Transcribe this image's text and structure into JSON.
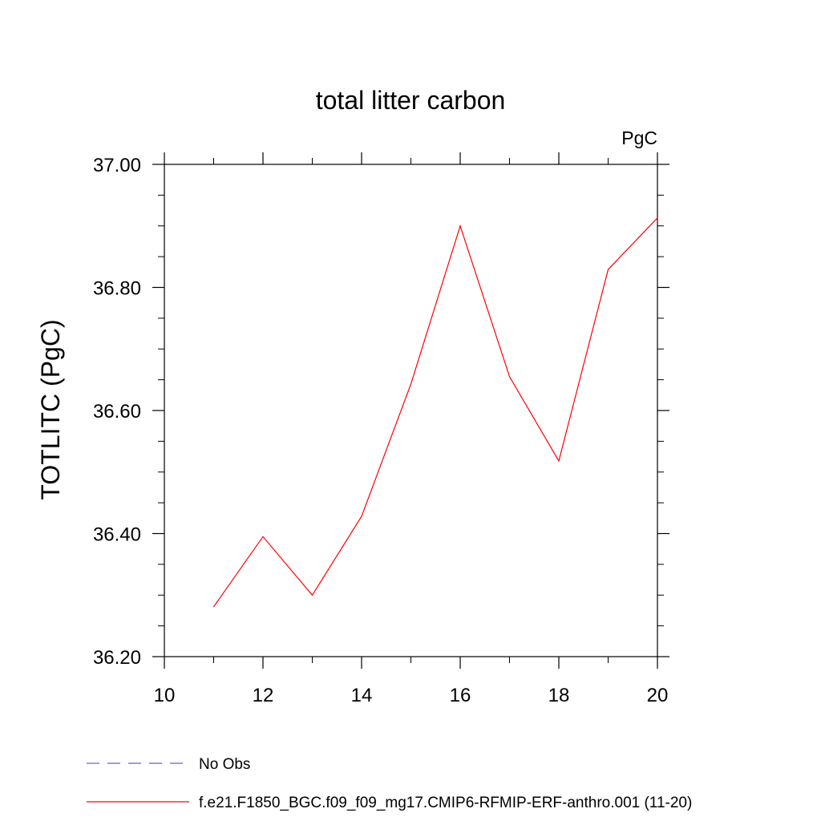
{
  "chart_data": {
    "type": "line",
    "title": "total litter carbon",
    "units_label": "PgC",
    "ylabel": "TOTLITC  (PgC)",
    "xlabel": "",
    "xlim": [
      10,
      20
    ],
    "ylim": [
      36.2,
      37.0
    ],
    "x_ticks": [
      10,
      12,
      14,
      16,
      18,
      20
    ],
    "x_tick_labels": [
      "10",
      "12",
      "14",
      "16",
      "18",
      "20"
    ],
    "x_minor_ticks": [
      11,
      13,
      15,
      17,
      19
    ],
    "y_ticks": [
      36.2,
      36.4,
      36.6,
      36.8,
      37.0
    ],
    "y_tick_labels": [
      "36.20",
      "36.40",
      "36.60",
      "36.80",
      "37.00"
    ],
    "y_minor_ticks": [
      36.25,
      36.3,
      36.35,
      36.45,
      36.5,
      36.55,
      36.65,
      36.7,
      36.75,
      36.85,
      36.9,
      36.95
    ],
    "grid": false,
    "series": [
      {
        "name": "f.e21.F1850_BGC.f09_f09_mg17.CMIP6-RFMIP-ERF-anthro.001 (11-20)",
        "color": "#ff0000",
        "style": "solid",
        "x": [
          11,
          12,
          13,
          14,
          15,
          16,
          17,
          18,
          19,
          20
        ],
        "y": [
          36.281,
          36.395,
          36.3,
          36.428,
          36.643,
          36.9,
          36.655,
          36.518,
          36.829,
          36.913
        ]
      }
    ],
    "legend": {
      "placement": "bottom-left",
      "entries": [
        {
          "label": "No Obs",
          "color": "#6a5acd",
          "style": "dashed"
        },
        {
          "label": "f.e21.F1850_BGC.f09_f09_mg17.CMIP6-RFMIP-ERF-anthro.001 (11-20)",
          "color": "#ff0000",
          "style": "solid"
        }
      ]
    }
  }
}
